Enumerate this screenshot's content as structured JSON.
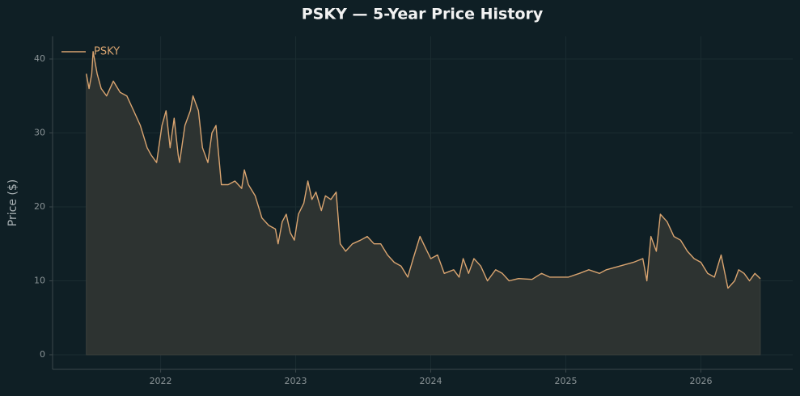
{
  "chart_data": {
    "type": "line",
    "title": "PSKY — 5-Year Price History",
    "ylabel": "Price ($)",
    "x": [
      2021.45,
      2021.47,
      2021.49,
      2021.5,
      2021.53,
      2021.56,
      2021.6,
      2021.65,
      2021.7,
      2021.75,
      2021.8,
      2021.85,
      2021.9,
      2021.93,
      2021.97,
      2022.01,
      2022.04,
      2022.07,
      2022.1,
      2022.13,
      2022.14,
      2022.18,
      2022.22,
      2022.24,
      2022.28,
      2022.31,
      2022.35,
      2022.38,
      2022.41,
      2022.45,
      2022.5,
      2022.55,
      2022.6,
      2022.62,
      2022.65,
      2022.7,
      2022.75,
      2022.8,
      2022.85,
      2022.87,
      2022.9,
      2022.93,
      2022.96,
      2022.99,
      2023.02,
      2023.06,
      2023.09,
      2023.12,
      2023.15,
      2023.19,
      2023.22,
      2023.26,
      2023.3,
      2023.33,
      2023.37,
      2023.42,
      2023.48,
      2023.53,
      2023.58,
      2023.63,
      2023.68,
      2023.73,
      2023.78,
      2023.83,
      2023.87,
      2023.92,
      2023.96,
      2024.0,
      2024.05,
      2024.1,
      2024.17,
      2024.21,
      2024.24,
      2024.28,
      2024.32,
      2024.37,
      2024.42,
      2024.48,
      2024.53,
      2024.58,
      2024.65,
      2024.75,
      2024.82,
      2024.88,
      2024.95,
      2025.02,
      2025.1,
      2025.17,
      2025.25,
      2025.3,
      2025.4,
      2025.5,
      2025.57,
      2025.6,
      2025.63,
      2025.67,
      2025.7,
      2025.75,
      2025.8,
      2025.85,
      2025.9,
      2025.95,
      2026.0,
      2026.05,
      2026.1,
      2026.15,
      2026.2,
      2026.25,
      2026.28,
      2026.32,
      2026.36,
      2026.4,
      2026.44
    ],
    "series": [
      {
        "name": "PSKY",
        "color": "#d9a470",
        "area_color": "#2d3331",
        "values": [
          38,
          36,
          38,
          41,
          38,
          36,
          35,
          37,
          35.5,
          35,
          33,
          31,
          28,
          27,
          26,
          31,
          33,
          28,
          32,
          27,
          26,
          31,
          33,
          35,
          33,
          28,
          26,
          30,
          31,
          23,
          23,
          23.5,
          22.5,
          25,
          23,
          21.5,
          18.5,
          17.5,
          17,
          15,
          18,
          19,
          16.5,
          15.5,
          19,
          20.5,
          23.5,
          21,
          22,
          19.5,
          21.5,
          21,
          22,
          15,
          14,
          15,
          15.5,
          16,
          15,
          15,
          13.5,
          12.5,
          12,
          10.5,
          13,
          16,
          14.5,
          13,
          13.5,
          11,
          11.5,
          10.5,
          13,
          11,
          13,
          12,
          10,
          11.5,
          11,
          10,
          10.3,
          10.2,
          11,
          10.5,
          10.5,
          10.5,
          11,
          11.5,
          11,
          11.5,
          12,
          12.5,
          13,
          10,
          16,
          14,
          19,
          18,
          16,
          15.5,
          14,
          13,
          12.5,
          11,
          10.5,
          13.5,
          9,
          10,
          11.5,
          11,
          10,
          11,
          10.3
        ]
      }
    ],
    "xlim": [
      2021.2,
      2026.68
    ],
    "ylim": [
      -1.97,
      43.06
    ],
    "xticks": [
      2022,
      2023,
      2024,
      2025,
      2026
    ],
    "yticks": [
      0,
      10,
      20,
      30,
      40
    ],
    "grid": true,
    "legend": "upper left"
  }
}
